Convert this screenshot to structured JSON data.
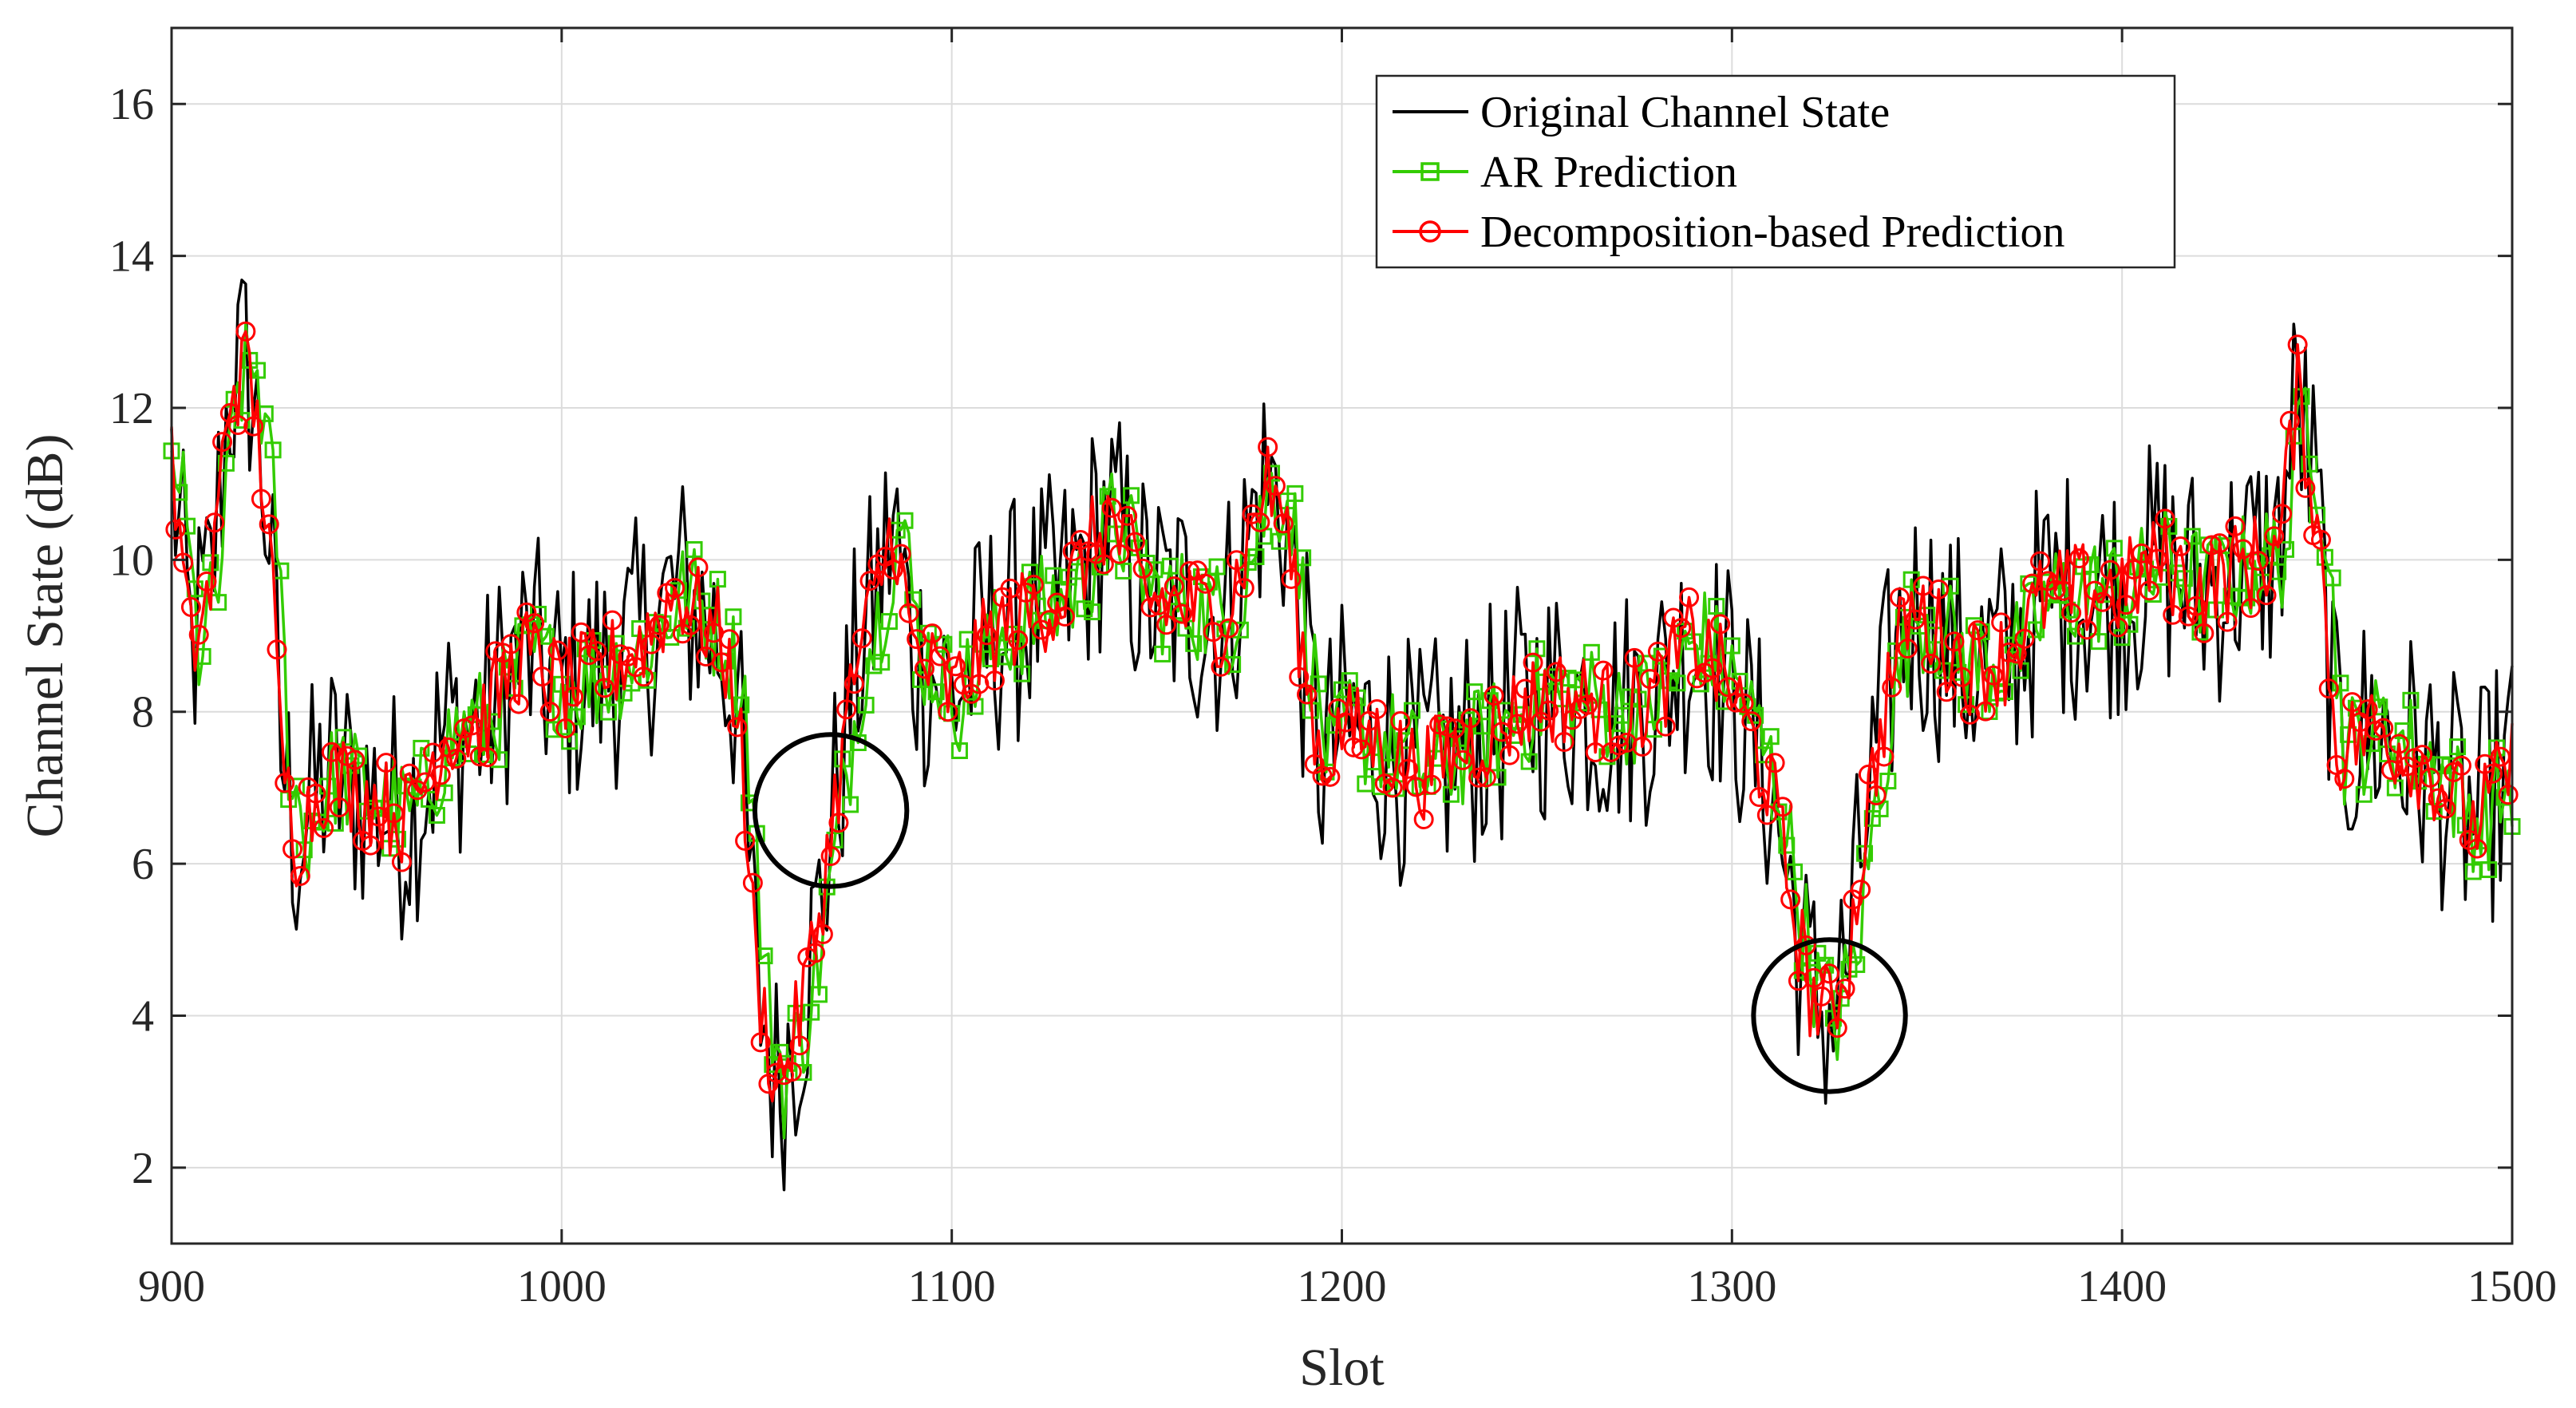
{
  "chart_data": {
    "type": "line",
    "title": "",
    "xlabel": "Slot",
    "ylabel": "Channel State (dB)",
    "xlim": [
      900,
      1500
    ],
    "ylim": [
      1,
      17
    ],
    "xticks": [
      900,
      1000,
      1100,
      1200,
      1300,
      1400,
      1500
    ],
    "yticks": [
      2,
      4,
      6,
      8,
      10,
      12,
      14,
      16
    ],
    "xtick_labels": [
      "900",
      "1000",
      "1100",
      "1200",
      "1300",
      "1400",
      "1500"
    ],
    "ytick_labels": [
      "2",
      "4",
      "6",
      "8",
      "10",
      "12",
      "14",
      "16"
    ],
    "grid": true,
    "legend_position": "top-right",
    "anchors": [
      [
        900,
        11.2
      ],
      [
        905,
        8.8
      ],
      [
        910,
        9.6
      ],
      [
        915,
        12.3
      ],
      [
        920,
        12.5
      ],
      [
        925,
        10.4
      ],
      [
        928,
        7.5
      ],
      [
        932,
        6.3
      ],
      [
        940,
        7.2
      ],
      [
        960,
        6.6
      ],
      [
        970,
        7.7
      ],
      [
        980,
        7.9
      ],
      [
        990,
        8.8
      ],
      [
        1000,
        8.3
      ],
      [
        1010,
        8.5
      ],
      [
        1020,
        8.9
      ],
      [
        1030,
        9.6
      ],
      [
        1040,
        9.0
      ],
      [
        1045,
        8.2
      ],
      [
        1050,
        4.5
      ],
      [
        1055,
        3.1
      ],
      [
        1060,
        3.8
      ],
      [
        1065,
        5.0
      ],
      [
        1070,
        6.8
      ],
      [
        1075,
        8.5
      ],
      [
        1080,
        9.4
      ],
      [
        1085,
        10.5
      ],
      [
        1090,
        8.8
      ],
      [
        1100,
        8.2
      ],
      [
        1110,
        9.0
      ],
      [
        1120,
        9.3
      ],
      [
        1130,
        9.6
      ],
      [
        1140,
        10.6
      ],
      [
        1150,
        9.5
      ],
      [
        1160,
        9.4
      ],
      [
        1170,
        9.2
      ],
      [
        1180,
        11.0
      ],
      [
        1185,
        10.7
      ],
      [
        1190,
        8.7
      ],
      [
        1195,
        7.3
      ],
      [
        1200,
        7.8
      ],
      [
        1210,
        7.6
      ],
      [
        1220,
        7.2
      ],
      [
        1230,
        7.5
      ],
      [
        1240,
        7.8
      ],
      [
        1250,
        8.2
      ],
      [
        1260,
        8.2
      ],
      [
        1270,
        8.0
      ],
      [
        1280,
        8.2
      ],
      [
        1290,
        9.0
      ],
      [
        1300,
        8.3
      ],
      [
        1310,
        7.0
      ],
      [
        1315,
        5.6
      ],
      [
        1320,
        4.3
      ],
      [
        1325,
        4.0
      ],
      [
        1330,
        4.8
      ],
      [
        1335,
        6.8
      ],
      [
        1340,
        8.3
      ],
      [
        1345,
        9.3
      ],
      [
        1350,
        9.2
      ],
      [
        1360,
        8.6
      ],
      [
        1370,
        8.7
      ],
      [
        1380,
        9.5
      ],
      [
        1390,
        9.6
      ],
      [
        1400,
        9.6
      ],
      [
        1410,
        10.0
      ],
      [
        1420,
        9.6
      ],
      [
        1430,
        9.9
      ],
      [
        1440,
        10.1
      ],
      [
        1445,
        12.2
      ],
      [
        1450,
        10.6
      ],
      [
        1455,
        7.5
      ],
      [
        1465,
        7.8
      ],
      [
        1480,
        7.2
      ],
      [
        1490,
        6.5
      ],
      [
        1500,
        7.3
      ]
    ],
    "series": [
      {
        "name": "Original Channel State",
        "color": "#000000",
        "marker": "none",
        "noise_amplitude_db": 1.7
      },
      {
        "name": "AR Prediction",
        "color": "#33cc00",
        "marker": "square",
        "lag_slots": 2,
        "noise_amplitude_db": 0.75
      },
      {
        "name": "Decomposition-based Prediction",
        "color": "#ff0000",
        "marker": "circle",
        "lag_slots": 0,
        "noise_amplitude_db": 0.65
      }
    ],
    "annotations": [
      {
        "type": "circle",
        "center_x": 1069,
        "center_y": 6.7,
        "radius_y_db": 1.0
      },
      {
        "type": "circle",
        "center_x": 1325,
        "center_y": 4.0,
        "radius_y_db": 1.0
      }
    ]
  }
}
